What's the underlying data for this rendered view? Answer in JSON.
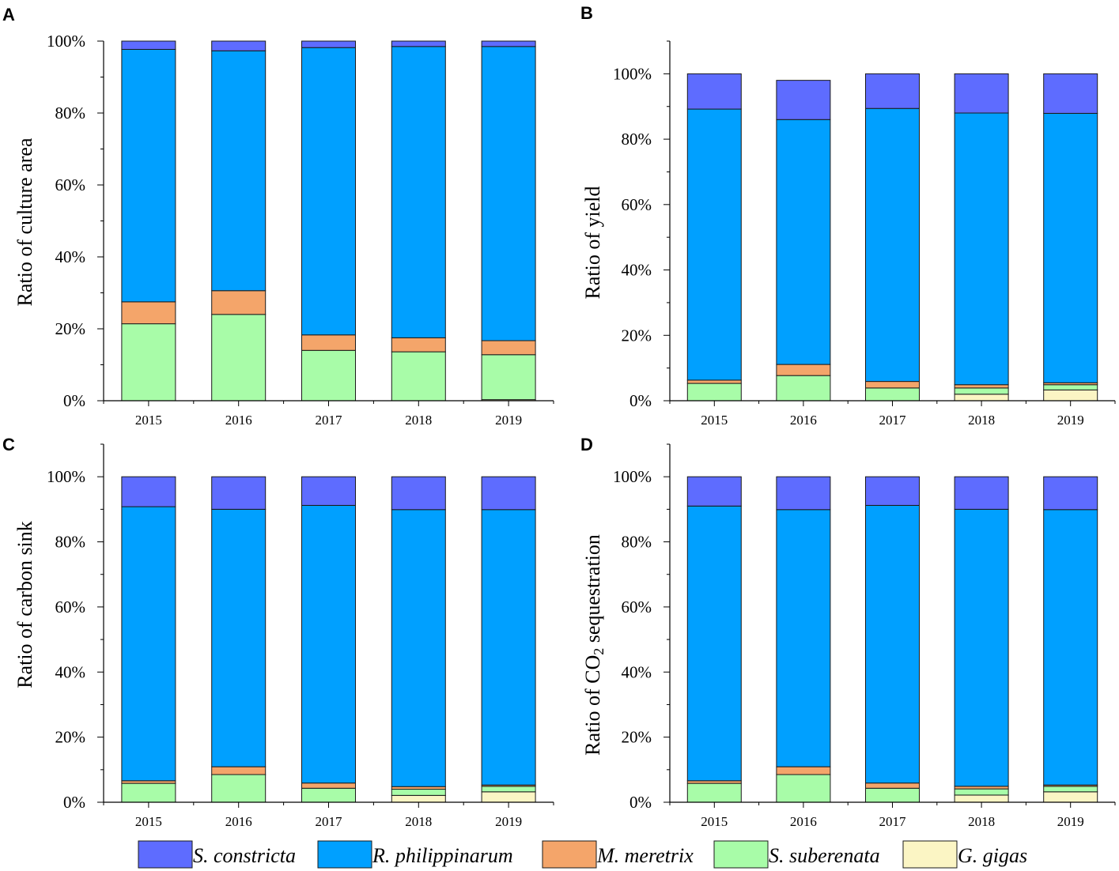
{
  "colors": {
    "S. constricta": "#5e6cff",
    "R. philippinarum": "#00a0ff",
    "M. meretrix": "#f4a56a",
    "S. suberenata": "#a8fca8",
    "G. gigas": "#fbf5c4"
  },
  "legend": [
    "S. constricta",
    "R. philippinarum",
    "M. meretrix",
    "S. suberenata",
    "G. gigas"
  ],
  "chart_data": [
    {
      "panel": "A",
      "type": "bar",
      "stacked": true,
      "ylabel": "Ratio of culture area",
      "ylim": [
        0,
        100
      ],
      "yticks": [
        "0%",
        "20%",
        "40%",
        "60%",
        "80%",
        "100%"
      ],
      "categories": [
        "2015",
        "2016",
        "2017",
        "2018",
        "2019"
      ],
      "series": [
        {
          "name": "G. gigas",
          "values": [
            0,
            0,
            0,
            0,
            0.3
          ]
        },
        {
          "name": "S. suberenata",
          "values": [
            21.4,
            24,
            14,
            13.6,
            12.5
          ]
        },
        {
          "name": "M. meretrix",
          "values": [
            6.1,
            6.6,
            4.3,
            3.9,
            3.9
          ]
        },
        {
          "name": "R. philippinarum",
          "values": [
            70.2,
            66.7,
            79.9,
            81,
            81.8
          ]
        },
        {
          "name": "S. constricta",
          "values": [
            2.3,
            2.7,
            1.8,
            1.5,
            1.5
          ]
        }
      ]
    },
    {
      "panel": "B",
      "type": "bar",
      "stacked": true,
      "ylabel": "Ratio of yield",
      "ylim": [
        0,
        110
      ],
      "yticks": [
        "0%",
        "20%",
        "40%",
        "60%",
        "80%",
        "100%"
      ],
      "categories": [
        "2015",
        "2016",
        "2017",
        "2018",
        "2019"
      ],
      "series": [
        {
          "name": "G. gigas",
          "values": [
            0,
            0,
            0,
            2,
            3.3
          ]
        },
        {
          "name": "S. suberenata",
          "values": [
            5.3,
            7.7,
            3.9,
            1.9,
            1.6
          ]
        },
        {
          "name": "M. meretrix",
          "values": [
            1,
            3.4,
            2,
            1,
            0.6
          ]
        },
        {
          "name": "R. philippinarum",
          "values": [
            82.9,
            74.9,
            83.5,
            83.1,
            82.4
          ]
        },
        {
          "name": "S. constricta",
          "values": [
            10.8,
            12,
            10.6,
            12,
            12.1
          ]
        }
      ]
    },
    {
      "panel": "C",
      "type": "bar",
      "stacked": true,
      "ylabel": "Ratio of carbon sink",
      "ylim": [
        0,
        110
      ],
      "yticks": [
        "0%",
        "20%",
        "40%",
        "60%",
        "80%",
        "100%"
      ],
      "categories": [
        "2015",
        "2016",
        "2017",
        "2018",
        "2019"
      ],
      "series": [
        {
          "name": "G. gigas",
          "values": [
            0,
            0,
            0,
            2.1,
            3.2
          ]
        },
        {
          "name": "S. suberenata",
          "values": [
            5.8,
            8.5,
            4.3,
            1.9,
            1.7
          ]
        },
        {
          "name": "M. meretrix",
          "values": [
            0.8,
            2.4,
            1.6,
            0.8,
            0.4
          ]
        },
        {
          "name": "R. philippinarum",
          "values": [
            84.2,
            79.1,
            85.3,
            85.1,
            84.6
          ]
        },
        {
          "name": "S. constricta",
          "values": [
            9.2,
            10,
            8.8,
            10.1,
            10.1
          ]
        }
      ]
    },
    {
      "panel": "D",
      "type": "bar",
      "stacked": true,
      "ylabel_main": "Ratio of CO",
      "ylabel_sub": "2",
      "ylabel_tail": " sequestration",
      "ylim": [
        0,
        110
      ],
      "yticks": [
        "0%",
        "20%",
        "40%",
        "60%",
        "80%",
        "100%"
      ],
      "categories": [
        "2015",
        "2016",
        "2017",
        "2018",
        "2019"
      ],
      "series": [
        {
          "name": "G. gigas",
          "values": [
            0,
            0,
            0,
            2.2,
            3.2
          ]
        },
        {
          "name": "S. suberenata",
          "values": [
            5.8,
            8.5,
            4.3,
            1.9,
            1.7
          ]
        },
        {
          "name": "M. meretrix",
          "values": [
            0.8,
            2.4,
            1.6,
            0.8,
            0.4
          ]
        },
        {
          "name": "R. philippinarum",
          "values": [
            84.4,
            79,
            85.3,
            85.1,
            84.6
          ]
        },
        {
          "name": "S. constricta",
          "values": [
            9,
            10.1,
            8.8,
            10,
            10.1
          ]
        }
      ]
    }
  ]
}
